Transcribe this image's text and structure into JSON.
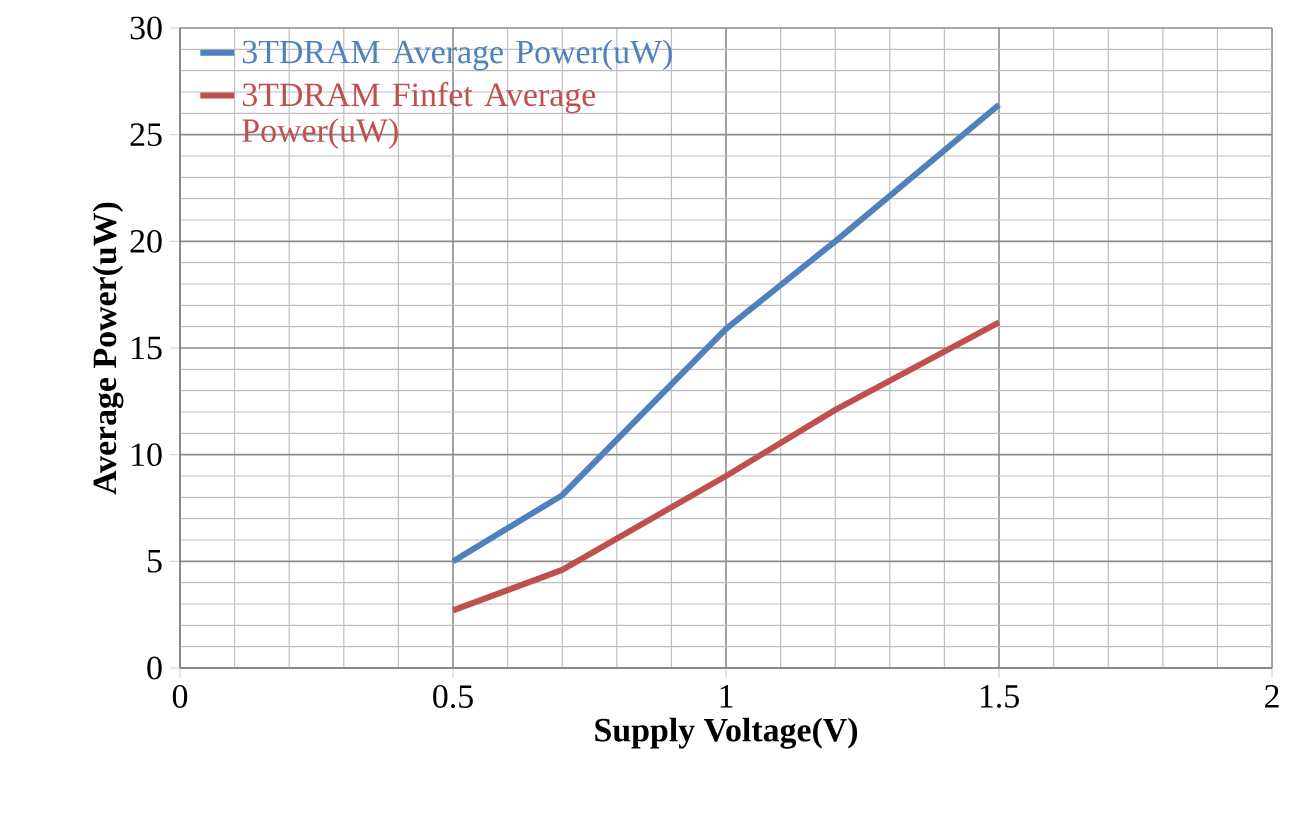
{
  "chart_data": {
    "type": "line",
    "xlabel": "Supply Voltage(V)",
    "ylabel": "Average Power(uW)",
    "xlim": [
      0,
      2
    ],
    "ylim": [
      0,
      30
    ],
    "xticks": [
      0,
      0.5,
      1,
      1.5,
      2
    ],
    "yticks": [
      0,
      5,
      10,
      15,
      20,
      25,
      30
    ],
    "grid": true,
    "legend": "top left",
    "marker": "none",
    "line_style": "solid",
    "x": [
      0.5,
      0.7,
      1.0,
      1.2,
      1.5
    ],
    "series": [
      {
        "name": "3TDRAM Average Power(uW)",
        "color": "#4f81bd",
        "values": [
          5,
          8.1,
          15.9,
          20,
          26.4
        ]
      },
      {
        "name": "3TDRAM Finfet Average Power(uW)",
        "color": "#c0504d",
        "values": [
          2.7,
          4.6,
          9.0,
          12.1,
          16.2
        ]
      }
    ]
  }
}
